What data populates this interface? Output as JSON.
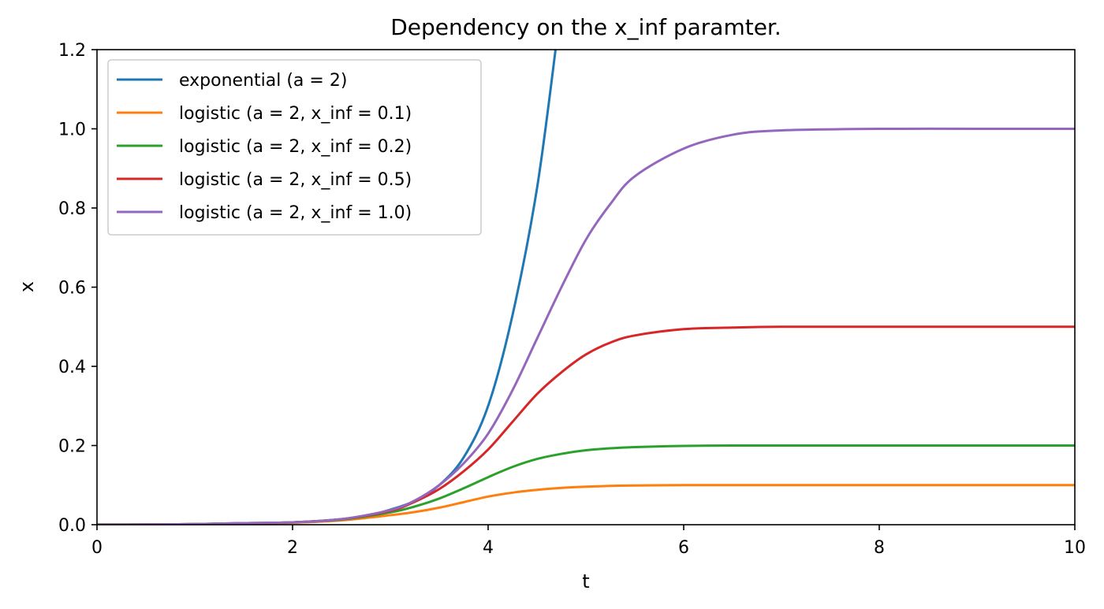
{
  "chart_data": {
    "type": "line",
    "title": "Dependency on the x_inf paramter.",
    "xlabel": "t",
    "ylabel": "x",
    "xlim": [
      0,
      10
    ],
    "ylim": [
      0,
      1.2
    ],
    "xticks": [
      0,
      2,
      4,
      6,
      8,
      10
    ],
    "xtick_labels": [
      "0",
      "2",
      "4",
      "6",
      "8",
      "10"
    ],
    "yticks": [
      0.0,
      0.2,
      0.4,
      0.6,
      0.8,
      1.0,
      1.2
    ],
    "ytick_labels": [
      "0.0",
      "0.2",
      "0.4",
      "0.6",
      "0.8",
      "1.0",
      "1.2"
    ],
    "grid": false,
    "legend_position": "top-left",
    "x": [
      0,
      0.5,
      1,
      1.5,
      2,
      2.5,
      3,
      3.25,
      3.5,
      3.75,
      4,
      4.25,
      4.5,
      4.75,
      5,
      5.25,
      5.5,
      6,
      6.5,
      7,
      8,
      9,
      10
    ],
    "series": [
      {
        "name": "exponential (a = 2)",
        "color": "#1f77b4",
        "x": [
          0,
          0.5,
          1,
          1.5,
          2,
          2.5,
          2.75,
          3,
          3.25,
          3.5,
          3.75,
          4,
          4.25,
          4.5,
          4.7
        ],
        "values": [
          0.0002,
          0.0005,
          0.0015,
          0.004,
          0.006,
          0.014,
          0.022,
          0.038,
          0.06,
          0.1,
          0.17,
          0.3,
          0.53,
          0.85,
          1.22
        ]
      },
      {
        "name": "logistic (a = 2, x_inf = 0.1)",
        "color": "#ff7f0e",
        "values": [
          0.0002,
          0.0005,
          0.0013,
          0.003,
          0.005,
          0.011,
          0.024,
          0.032,
          0.043,
          0.057,
          0.071,
          0.081,
          0.088,
          0.093,
          0.096,
          0.098,
          0.099,
          0.1,
          0.1,
          0.1,
          0.1,
          0.1,
          0.1
        ]
      },
      {
        "name": "logistic (a = 2, x_inf = 0.2)",
        "color": "#2ca02c",
        "values": [
          0.0002,
          0.0005,
          0.0014,
          0.0035,
          0.006,
          0.013,
          0.031,
          0.046,
          0.066,
          0.092,
          0.12,
          0.146,
          0.166,
          0.179,
          0.188,
          0.193,
          0.196,
          0.199,
          0.2,
          0.2,
          0.2,
          0.2,
          0.2
        ]
      },
      {
        "name": "logistic (a = 2, x_inf = 0.5)",
        "color": "#d62728",
        "values": [
          0.0002,
          0.0005,
          0.0015,
          0.0038,
          0.006,
          0.014,
          0.035,
          0.058,
          0.09,
          0.135,
          0.19,
          0.26,
          0.33,
          0.385,
          0.43,
          0.46,
          0.478,
          0.494,
          0.498,
          0.5,
          0.5,
          0.5,
          0.5
        ]
      },
      {
        "name": "logistic (a = 2, x_inf = 1.0)",
        "color": "#9467bd",
        "values": [
          0.0002,
          0.0005,
          0.0015,
          0.004,
          0.006,
          0.014,
          0.037,
          0.061,
          0.1,
          0.155,
          0.23,
          0.34,
          0.47,
          0.6,
          0.72,
          0.81,
          0.88,
          0.95,
          0.985,
          0.996,
          1.0,
          1.0,
          1.0
        ]
      }
    ]
  }
}
